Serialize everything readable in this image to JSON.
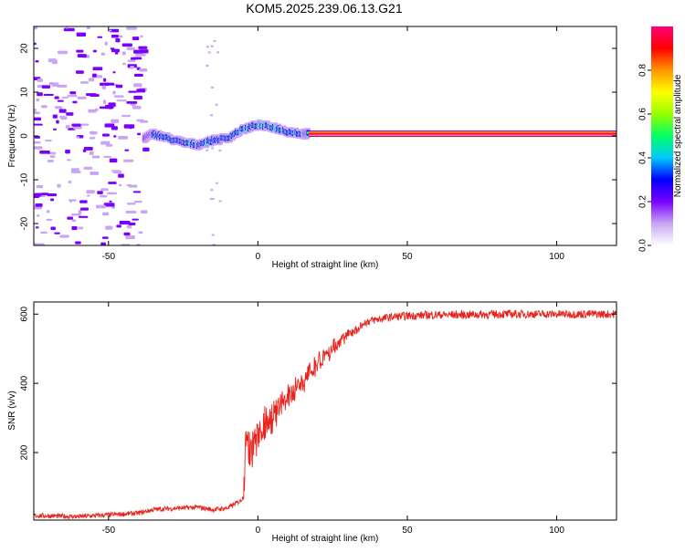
{
  "title": "KOM5.2025.239.06.13.G21",
  "colors": {
    "axis": "#000000",
    "snr_line": "#e8231c",
    "background": "#ffffff"
  },
  "chart_data": [
    {
      "type": "heatmap",
      "name": "spectrogram",
      "xlabel": "Height of straight line (km)",
      "ylabel": "Frequency (Hz)",
      "xlim": [
        -75,
        120
      ],
      "ylim": [
        -25,
        25
      ],
      "xticks": [
        -50,
        0,
        50,
        100
      ],
      "yticks": [
        -20,
        -10,
        0,
        10,
        20
      ],
      "colorbar": {
        "label": "Normalized spectral amplitude",
        "range": [
          0,
          1
        ],
        "ticks": [
          "0.0",
          "0.2",
          "0.4",
          "0.6",
          "0.8"
        ],
        "tick_values": [
          0,
          0.2,
          0.4,
          0.6,
          0.8
        ],
        "colormap": [
          "#ffffff",
          "#c8a6f4",
          "#7a00ff",
          "#0000ff",
          "#00c8ff",
          "#00ff64",
          "#96ff00",
          "#ffff00",
          "#ff9600",
          "#ff0000",
          "#ff0078"
        ]
      },
      "ridge_trace": {
        "x": [
          -38,
          -35,
          -30,
          -25,
          -20,
          -15,
          -10,
          -5,
          0,
          5,
          10,
          15,
          17
        ],
        "y": [
          -0.5,
          0.5,
          -0.5,
          -1.5,
          -2.0,
          -1.0,
          -0.5,
          1.5,
          2.5,
          2.0,
          1.0,
          0.5,
          0.5
        ],
        "amplitude": [
          0.3,
          0.5,
          0.45,
          0.5,
          0.5,
          0.45,
          0.5,
          0.5,
          0.55,
          0.55,
          0.5,
          0.45,
          0.45
        ]
      },
      "carrier": {
        "x_start": 17,
        "x_end": 120,
        "frequency": 0.5,
        "amplitude": 1.0
      }
    },
    {
      "type": "line",
      "name": "snr",
      "xlabel": "Height of straight line (km)",
      "ylabel": "SNR (v/v)",
      "xlim": [
        -75,
        120
      ],
      "ylim": [
        5,
        635
      ],
      "xticks": [
        -50,
        0,
        50,
        100
      ],
      "yticks": [
        200,
        400,
        600
      ],
      "series": [
        {
          "name": "SNR",
          "x": [
            -75,
            -60,
            -50,
            -40,
            -35,
            -30,
            -25,
            -20,
            -15,
            -10,
            -6,
            -5,
            -4,
            -2,
            0,
            2,
            5,
            8,
            10,
            15,
            20,
            25,
            30,
            35,
            40,
            45,
            50,
            60,
            70,
            80,
            90,
            100,
            110,
            120
          ],
          "y": [
            18,
            15,
            20,
            25,
            35,
            38,
            40,
            42,
            35,
            40,
            60,
            70,
            290,
            250,
            300,
            330,
            350,
            380,
            400,
            440,
            490,
            520,
            555,
            575,
            585,
            592,
            595,
            598,
            598,
            600,
            600,
            600,
            600,
            600
          ]
        }
      ]
    }
  ]
}
